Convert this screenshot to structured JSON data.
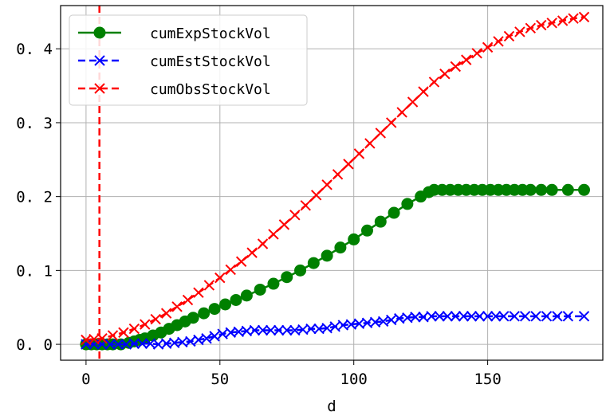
{
  "chart_data": {
    "type": "line",
    "xlabel": "d",
    "ylabel": "",
    "xlim": [
      -9.5,
      193
    ],
    "ylim": [
      -0.0215,
      0.4585
    ],
    "xticks": [
      0,
      50,
      100,
      150
    ],
    "xtick_labels": [
      "0",
      "50",
      "100",
      "150"
    ],
    "yticks": [
      0.0,
      0.1,
      0.2,
      0.3,
      0.4
    ],
    "ytick_labels": [
      "0. 0",
      "0. 1",
      "0. 2",
      "0. 3",
      "0. 4"
    ],
    "grid": true,
    "legend_position": "top-left",
    "vline": {
      "x": 5,
      "color": "#ff0000",
      "style": "dashed"
    },
    "series": [
      {
        "name": "cumExpStockVol",
        "color": "#008000",
        "marker": "circle",
        "linestyle": "solid",
        "points": [
          [
            0,
            0
          ],
          [
            2,
            0
          ],
          [
            4,
            0
          ],
          [
            6,
            0
          ],
          [
            8,
            0
          ],
          [
            10,
            0
          ],
          [
            13,
            0
          ],
          [
            16,
            0.002
          ],
          [
            18,
            0.004
          ],
          [
            20,
            0.006
          ],
          [
            22,
            0.008
          ],
          [
            25,
            0.012
          ],
          [
            28,
            0.016
          ],
          [
            31,
            0.021
          ],
          [
            34,
            0.026
          ],
          [
            37,
            0.031
          ],
          [
            40,
            0.036
          ],
          [
            44,
            0.042
          ],
          [
            48,
            0.048
          ],
          [
            52,
            0.054
          ],
          [
            56,
            0.06
          ],
          [
            60,
            0.066
          ],
          [
            65,
            0.074
          ],
          [
            70,
            0.082
          ],
          [
            75,
            0.091
          ],
          [
            80,
            0.1
          ],
          [
            85,
            0.11
          ],
          [
            90,
            0.12
          ],
          [
            95,
            0.131
          ],
          [
            100,
            0.142
          ],
          [
            105,
            0.154
          ],
          [
            110,
            0.166
          ],
          [
            115,
            0.178
          ],
          [
            120,
            0.19
          ],
          [
            125,
            0.2
          ],
          [
            128,
            0.206
          ],
          [
            130,
            0.209
          ],
          [
            133,
            0.209
          ],
          [
            136,
            0.209
          ],
          [
            139,
            0.209
          ],
          [
            142,
            0.209
          ],
          [
            145,
            0.209
          ],
          [
            148,
            0.209
          ],
          [
            151,
            0.209
          ],
          [
            154,
            0.209
          ],
          [
            157,
            0.209
          ],
          [
            160,
            0.209
          ],
          [
            163,
            0.209
          ],
          [
            166,
            0.209
          ],
          [
            170,
            0.209
          ],
          [
            174,
            0.209
          ],
          [
            180,
            0.209
          ],
          [
            186,
            0.209
          ]
        ]
      },
      {
        "name": "cumEstStockVol",
        "color": "#0000ff",
        "marker": "x",
        "linestyle": "dashed",
        "points": [
          [
            0,
            0
          ],
          [
            3,
            0
          ],
          [
            6,
            0
          ],
          [
            9,
            0
          ],
          [
            12,
            0
          ],
          [
            15,
            0
          ],
          [
            18,
            0.001
          ],
          [
            21,
            0.001
          ],
          [
            24,
            0.001
          ],
          [
            27,
            0
          ],
          [
            30,
            0.001
          ],
          [
            33,
            0.002
          ],
          [
            36,
            0.003
          ],
          [
            39,
            0.004
          ],
          [
            42,
            0.006
          ],
          [
            45,
            0.008
          ],
          [
            48,
            0.011
          ],
          [
            51,
            0.014
          ],
          [
            54,
            0.016
          ],
          [
            57,
            0.017
          ],
          [
            60,
            0.018
          ],
          [
            63,
            0.019
          ],
          [
            66,
            0.019
          ],
          [
            69,
            0.019
          ],
          [
            72,
            0.019
          ],
          [
            75,
            0.019
          ],
          [
            78,
            0.019
          ],
          [
            81,
            0.02
          ],
          [
            84,
            0.021
          ],
          [
            87,
            0.021
          ],
          [
            90,
            0.022
          ],
          [
            93,
            0.024
          ],
          [
            96,
            0.026
          ],
          [
            99,
            0.027
          ],
          [
            102,
            0.028
          ],
          [
            105,
            0.029
          ],
          [
            108,
            0.03
          ],
          [
            111,
            0.031
          ],
          [
            114,
            0.033
          ],
          [
            117,
            0.035
          ],
          [
            120,
            0.036
          ],
          [
            123,
            0.037
          ],
          [
            126,
            0.037
          ],
          [
            129,
            0.038
          ],
          [
            132,
            0.038
          ],
          [
            135,
            0.038
          ],
          [
            138,
            0.038
          ],
          [
            141,
            0.038
          ],
          [
            144,
            0.038
          ],
          [
            147,
            0.038
          ],
          [
            150,
            0.038
          ],
          [
            153,
            0.038
          ],
          [
            156,
            0.038
          ],
          [
            160,
            0.038
          ],
          [
            164,
            0.038
          ],
          [
            168,
            0.038
          ],
          [
            172,
            0.038
          ],
          [
            176,
            0.038
          ],
          [
            180,
            0.038
          ],
          [
            186,
            0.038
          ]
        ]
      },
      {
        "name": "cumObsStockVol",
        "color": "#ff0000",
        "marker": "x",
        "linestyle": "dashed",
        "points": [
          [
            0,
            0.006
          ],
          [
            3,
            0.007
          ],
          [
            6,
            0.008
          ],
          [
            10,
            0.012
          ],
          [
            14,
            0.016
          ],
          [
            18,
            0.021
          ],
          [
            22,
            0.027
          ],
          [
            26,
            0.034
          ],
          [
            30,
            0.042
          ],
          [
            34,
            0.051
          ],
          [
            38,
            0.06
          ],
          [
            42,
            0.07
          ],
          [
            46,
            0.08
          ],
          [
            50,
            0.09
          ],
          [
            54,
            0.101
          ],
          [
            58,
            0.112
          ],
          [
            62,
            0.124
          ],
          [
            66,
            0.136
          ],
          [
            70,
            0.149
          ],
          [
            74,
            0.162
          ],
          [
            78,
            0.175
          ],
          [
            82,
            0.188
          ],
          [
            86,
            0.202
          ],
          [
            90,
            0.216
          ],
          [
            94,
            0.23
          ],
          [
            98,
            0.244
          ],
          [
            102,
            0.258
          ],
          [
            106,
            0.272
          ],
          [
            110,
            0.286
          ],
          [
            114,
            0.3
          ],
          [
            118,
            0.314
          ],
          [
            122,
            0.328
          ],
          [
            126,
            0.342
          ],
          [
            130,
            0.355
          ],
          [
            134,
            0.366
          ],
          [
            138,
            0.376
          ],
          [
            142,
            0.385
          ],
          [
            146,
            0.394
          ],
          [
            150,
            0.402
          ],
          [
            154,
            0.41
          ],
          [
            158,
            0.417
          ],
          [
            162,
            0.423
          ],
          [
            166,
            0.428
          ],
          [
            170,
            0.432
          ],
          [
            174,
            0.435
          ],
          [
            178,
            0.438
          ],
          [
            182,
            0.441
          ],
          [
            186,
            0.443
          ]
        ]
      }
    ]
  }
}
